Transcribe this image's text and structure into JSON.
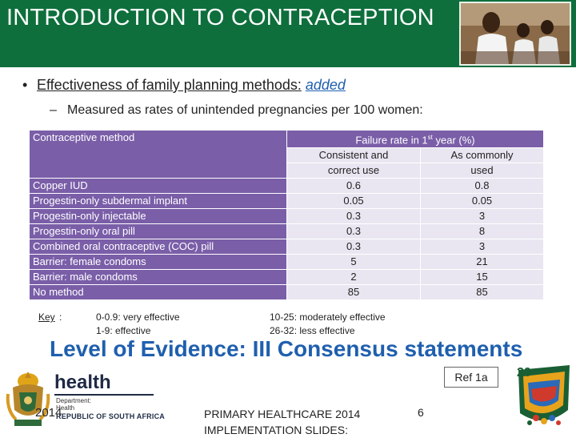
{
  "header": {
    "title": "INTRODUCTION TO CONTRACEPTION",
    "accent_color": "#0e6f3c"
  },
  "bullets": {
    "b1_prefix": "Effectiveness of family planning methods:",
    "b1_added": "added",
    "b2": "Measured as rates of unintended pregnancies per 100 women:"
  },
  "table": {
    "method_header": "Contraceptive method",
    "rate_header_main": "Failure rate in 1",
    "rate_header_sup": "st",
    "rate_header_tail": " year (%)",
    "col1_line1": "Consistent and",
    "col1_line2": "correct use",
    "col2_line1": "As commonly",
    "col2_line2": "used",
    "rows": [
      {
        "method": "Copper IUD",
        "v1": "0.6",
        "v2": "0.8"
      },
      {
        "method": "Progestin-only subdermal implant",
        "v1": "0.05",
        "v2": "0.05"
      },
      {
        "method": "Progestin-only injectable",
        "v1": "0.3",
        "v2": "3"
      },
      {
        "method": "Progestin-only oral pill",
        "v1": "0.3",
        "v2": "8"
      },
      {
        "method": "Combined oral contraceptive (COC) pill",
        "v1": "0.3",
        "v2": "3"
      },
      {
        "method": "Barrier: female condoms",
        "v1": "5",
        "v2": "21"
      },
      {
        "method": "Barrier: male condoms",
        "v1": "2",
        "v2": "15"
      },
      {
        "method": "No method",
        "v1": "85",
        "v2": "85"
      }
    ],
    "method_color": "#7a5ea8",
    "value_bg_color": "#e9e6f1"
  },
  "key": {
    "label": "Key",
    "items": [
      "0-0.9: very effective",
      "1-9: effective",
      "10-25: moderately effective",
      "26-32: less effective"
    ]
  },
  "evidence": "Level of Evidence: III Consensus statements",
  "ref": "Ref 1a",
  "footer": {
    "health": "health",
    "dept_line1": "Department:",
    "dept_line2": "Health",
    "rsa": "REPUBLIC OF SOUTH AFRICA",
    "year": "2014",
    "title_line1": "PRIMARY HEALTHCARE 2014",
    "title_line2": "IMPLEMENTATION SLIDES:",
    "page": "6"
  },
  "icons": {
    "crest": "coat-of-arms-icon",
    "anniversary": "20-years-logo-icon",
    "photo": "nurse-with-children-photo"
  }
}
